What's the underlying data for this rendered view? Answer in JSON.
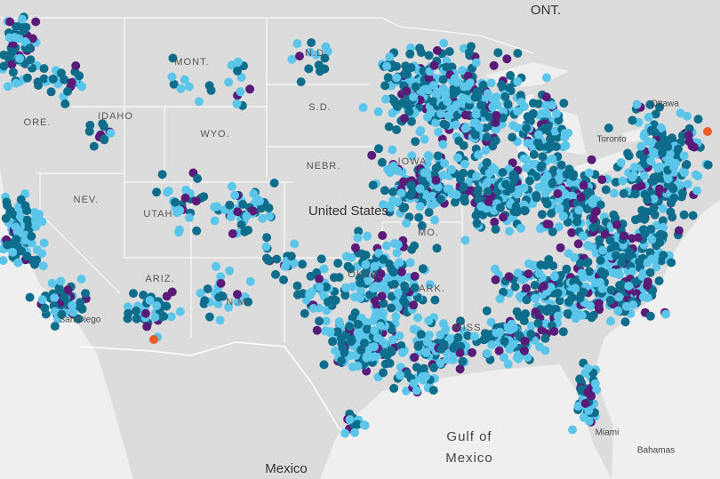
{
  "labels": {
    "countries": [
      "ONT.",
      "United States",
      "Mexico",
      "Bahamas"
    ],
    "states": [
      "MONT.",
      "N.D.",
      "ORE.",
      "IDAHO",
      "S.D.",
      "WYO.",
      "NEBR.",
      "NEV.",
      "UTAH",
      "N.M.",
      "ARIZ.",
      "OKLA.",
      "ARK.",
      "MISS.",
      "MO.",
      "IOWA"
    ],
    "cities": [
      "Ottawa",
      "Toronto",
      "Miami",
      "San Diego"
    ],
    "water": [
      "Gulf of",
      "Mexico"
    ]
  }
}
